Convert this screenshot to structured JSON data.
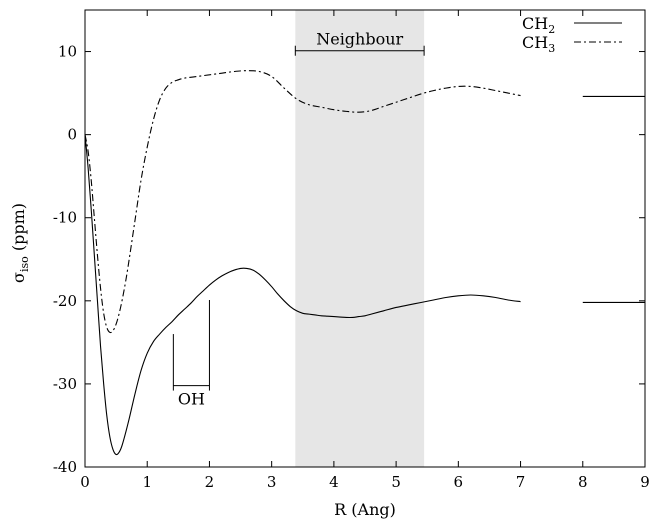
{
  "chart_data": {
    "type": "line",
    "title": "",
    "xlabel": "R (Ang)",
    "ylabel_main": "σ",
    "ylabel_sub": "iso",
    "ylabel_unit": "(ppm)",
    "xlim": [
      0,
      9
    ],
    "ylim": [
      -40,
      15
    ],
    "xticks": [
      0,
      1,
      2,
      3,
      4,
      5,
      6,
      7,
      8,
      9
    ],
    "yticks": [
      -40,
      -30,
      -20,
      -10,
      0,
      10
    ],
    "ytick_labels": [
      "-40",
      "-30",
      "-20",
      "-10",
      "0",
      "10"
    ],
    "grid": false,
    "legend_position": "top-right",
    "series": [
      {
        "name": "CH2",
        "label_main": "CH",
        "label_sub": "2",
        "line_style": "solid",
        "color": "#000000",
        "x": [
          0.0,
          0.05,
          0.1,
          0.15,
          0.2,
          0.25,
          0.3,
          0.35,
          0.4,
          0.45,
          0.5,
          0.55,
          0.6,
          0.7,
          0.8,
          0.9,
          1.0,
          1.1,
          1.2,
          1.3,
          1.4,
          1.5,
          1.6,
          1.7,
          1.8,
          1.9,
          2.0,
          2.1,
          2.2,
          2.3,
          2.4,
          2.5,
          2.6,
          2.7,
          2.8,
          2.9,
          3.0,
          3.1,
          3.2,
          3.3,
          3.4,
          3.5,
          3.6,
          3.7,
          3.8,
          3.9,
          4.0,
          4.1,
          4.2,
          4.3,
          4.4,
          4.5,
          4.6,
          4.8,
          5.0,
          5.2,
          5.4,
          5.6,
          5.8,
          6.0,
          6.2,
          6.4,
          6.6,
          6.8,
          7.0
        ],
        "y": [
          0.0,
          -4.0,
          -9.0,
          -14.5,
          -20.0,
          -25.5,
          -30.0,
          -33.8,
          -36.4,
          -37.9,
          -38.5,
          -38.2,
          -37.3,
          -34.5,
          -31.3,
          -28.4,
          -26.3,
          -24.9,
          -24.0,
          -23.2,
          -22.5,
          -21.7,
          -21.0,
          -20.3,
          -19.5,
          -18.8,
          -18.1,
          -17.5,
          -17.0,
          -16.6,
          -16.3,
          -16.1,
          -16.1,
          -16.3,
          -16.8,
          -17.5,
          -18.3,
          -19.2,
          -20.0,
          -20.7,
          -21.2,
          -21.5,
          -21.6,
          -21.7,
          -21.8,
          -21.85,
          -21.9,
          -21.95,
          -22.0,
          -22.0,
          -21.9,
          -21.8,
          -21.6,
          -21.2,
          -20.8,
          -20.5,
          -20.2,
          -19.9,
          -19.6,
          -19.4,
          -19.3,
          -19.4,
          -19.6,
          -19.9,
          -20.1
        ],
        "asymptote_x": [
          8.0,
          9.0
        ],
        "asymptote_y": -20.2
      },
      {
        "name": "CH3",
        "label_main": "CH",
        "label_sub": "3",
        "line_style": "dashdot",
        "color": "#000000",
        "x": [
          0.0,
          0.05,
          0.1,
          0.15,
          0.2,
          0.25,
          0.3,
          0.35,
          0.4,
          0.45,
          0.5,
          0.55,
          0.6,
          0.65,
          0.7,
          0.8,
          0.9,
          1.0,
          1.1,
          1.2,
          1.3,
          1.4,
          1.5,
          1.6,
          1.8,
          2.0,
          2.2,
          2.4,
          2.6,
          2.8,
          3.0,
          3.2,
          3.4,
          3.6,
          3.8,
          4.0,
          4.2,
          4.4,
          4.6,
          4.8,
          5.0,
          5.2,
          5.4,
          5.6,
          5.8,
          6.0,
          6.2,
          6.4,
          6.6,
          6.8,
          7.0
        ],
        "y": [
          0.0,
          -2.0,
          -5.5,
          -10.0,
          -14.5,
          -18.5,
          -21.5,
          -23.2,
          -23.8,
          -23.6,
          -22.8,
          -21.5,
          -19.8,
          -17.8,
          -15.5,
          -10.5,
          -5.5,
          -1.5,
          1.8,
          4.2,
          5.6,
          6.3,
          6.6,
          6.8,
          7.0,
          7.2,
          7.4,
          7.6,
          7.7,
          7.6,
          7.0,
          5.6,
          4.3,
          3.6,
          3.3,
          3.0,
          2.8,
          2.7,
          2.9,
          3.4,
          3.9,
          4.4,
          4.9,
          5.3,
          5.6,
          5.8,
          5.8,
          5.6,
          5.3,
          5.0,
          4.7
        ],
        "asymptote_x": [
          8.0,
          9.0
        ],
        "asymptote_y": 4.6
      }
    ],
    "shaded_region": {
      "x": [
        3.38,
        5.45
      ],
      "color": "#e6e6e6"
    },
    "annotations": [
      {
        "text": "Neighbour",
        "bracket_x": [
          3.38,
          5.45
        ],
        "bracket_y": 10.1
      },
      {
        "text": "OH",
        "bracket_x": [
          1.42,
          2.0
        ],
        "bracket_y": -30.2,
        "left_line_top": -24.0,
        "right_line_top": -19.9
      }
    ]
  }
}
